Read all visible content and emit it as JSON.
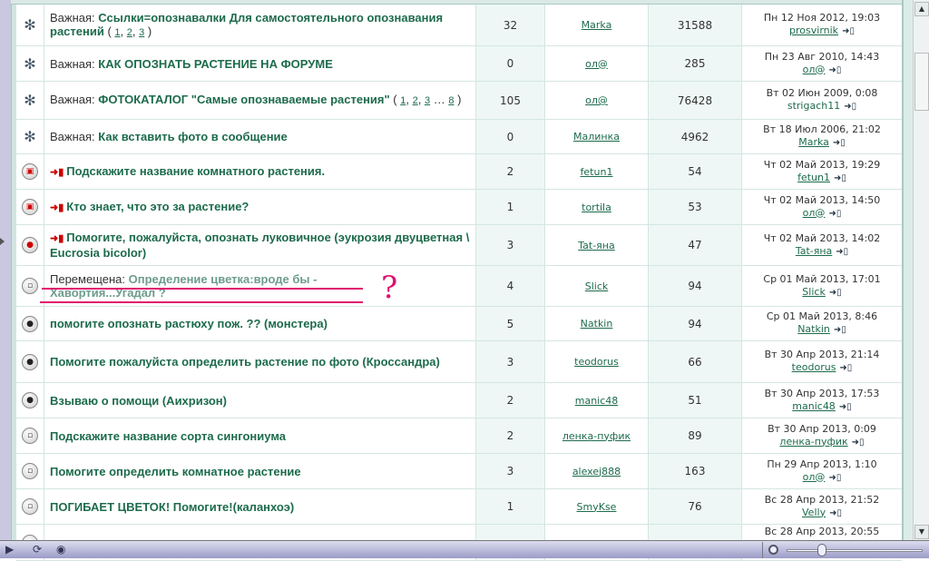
{
  "topics": [
    {
      "icon": "sticky",
      "prefix": "Важная:",
      "title": "Ссылки=опознавалки Для самостоятельного опознавания растений",
      "pages": [
        "1",
        "2",
        "3"
      ],
      "replies": "32",
      "author": "Marka",
      "views": "31588",
      "last_date": "Пн 12 Ноя 2012, 19:03",
      "last_user": "prosvirnik",
      "last_linked": true
    },
    {
      "icon": "sticky",
      "prefix": "Важная:",
      "title": "КАК ОПОЗНАТЬ РАСТЕНИЕ НА ФОРУМЕ",
      "replies": "0",
      "author": "ол@",
      "views": "285",
      "last_date": "Пн 23 Авг 2010, 14:43",
      "last_user": "ол@",
      "last_linked": true
    },
    {
      "icon": "sticky",
      "prefix": "Важная:",
      "title": "ФОТОКАТАЛОГ \"Самые опознаваемые растения\"",
      "pages": [
        "1",
        "2",
        "3",
        "…",
        "8"
      ],
      "replies": "105",
      "author": "ол@",
      "views": "76428",
      "last_date": "Вт 02 Июн 2009, 0:08",
      "last_user": "strigach11",
      "last_linked": false
    },
    {
      "icon": "sticky",
      "prefix": "Важная:",
      "title": "Как вставить фото в сообщение",
      "replies": "0",
      "author": "Малинка",
      "views": "4962",
      "last_date": "Вт 18 Июл 2006, 21:02",
      "last_user": "Marka",
      "last_linked": true
    },
    {
      "icon": "hot",
      "new": true,
      "title": "Подскажите название комнатного растения.",
      "replies": "2",
      "author": "fetun1",
      "views": "54",
      "last_date": "Чт 02 Май 2013, 19:29",
      "last_user": "fetun1",
      "last_linked": true
    },
    {
      "icon": "hot",
      "new": true,
      "title": "Кто знает, что это за растение?",
      "replies": "1",
      "author": "tortila",
      "views": "53",
      "last_date": "Чт 02 Май 2013, 14:50",
      "last_user": "ол@",
      "last_linked": true
    },
    {
      "icon": "hot-lock",
      "new": true,
      "title": "Помогите, пожалуйста, опознать луковичное (эукрозия двуцветная \\ Eucrosia bicolor)",
      "replies": "3",
      "author": "Tat-яна",
      "views": "47",
      "last_date": "Чт 02 Май 2013, 14:02",
      "last_user": "Tat-яна",
      "last_linked": true
    },
    {
      "icon": "normal",
      "prefix": "Перемещена:",
      "moved": true,
      "title": "Определение цветка:вроде бы - Хавортия...Угадал ?",
      "replies": "4",
      "author": "Slick",
      "views": "94",
      "last_date": "Ср 01 Май 2013, 17:01",
      "last_user": "Slick",
      "last_linked": true
    },
    {
      "icon": "lock",
      "title": "помогите опознать растюху пож. ?? (монстера)",
      "replies": "5",
      "author": "Natkin",
      "views": "94",
      "last_date": "Ср 01 Май 2013, 8:46",
      "last_user": "Natkin",
      "last_linked": true
    },
    {
      "icon": "lock",
      "title": "Помогите пожалуйста определить растение по фото (Кроссандра)",
      "replies": "3",
      "author": "teodorus",
      "views": "66",
      "last_date": "Вт 30 Апр 2013, 21:14",
      "last_user": "teodorus",
      "last_linked": true
    },
    {
      "icon": "lock",
      "title": "Взываю о помощи (Аихризон)",
      "replies": "2",
      "author": "manic48",
      "views": "51",
      "last_date": "Вт 30 Апр 2013, 17:53",
      "last_user": "manic48",
      "last_linked": true
    },
    {
      "icon": "normal",
      "title": "Подскажите название сорта сингониума",
      "replies": "2",
      "author": "ленка-пуфик",
      "views": "89",
      "last_date": "Вт 30 Апр 2013, 0:09",
      "last_user": "ленка-пуфик",
      "last_linked": true
    },
    {
      "icon": "normal",
      "title": "Помогите определить комнатное растение",
      "replies": "3",
      "author": "alexej888",
      "views": "163",
      "last_date": "Пн 29 Апр 2013, 1:10",
      "last_user": "ол@",
      "last_linked": true
    },
    {
      "icon": "normal",
      "title": "ПОГИБАЕТ ЦВЕТОК! Помогите!(каланхоэ)",
      "replies": "1",
      "author": "SmyKse",
      "views": "76",
      "last_date": "Вс 28 Апр 2013, 21:52",
      "last_user": "Velly",
      "last_linked": true
    },
    {
      "icon": "normal",
      "title": "",
      "replies": "",
      "author": "",
      "views": "",
      "last_date": "Вс 28 Апр 2013, 20:55",
      "last_user": "",
      "last_linked": false
    }
  ],
  "annotation": {
    "mark": "?",
    "color": "#e0106e"
  },
  "colors": {
    "link": "#1d6b4c",
    "moved": "#6d9c8e",
    "hot": "#cc0000"
  }
}
